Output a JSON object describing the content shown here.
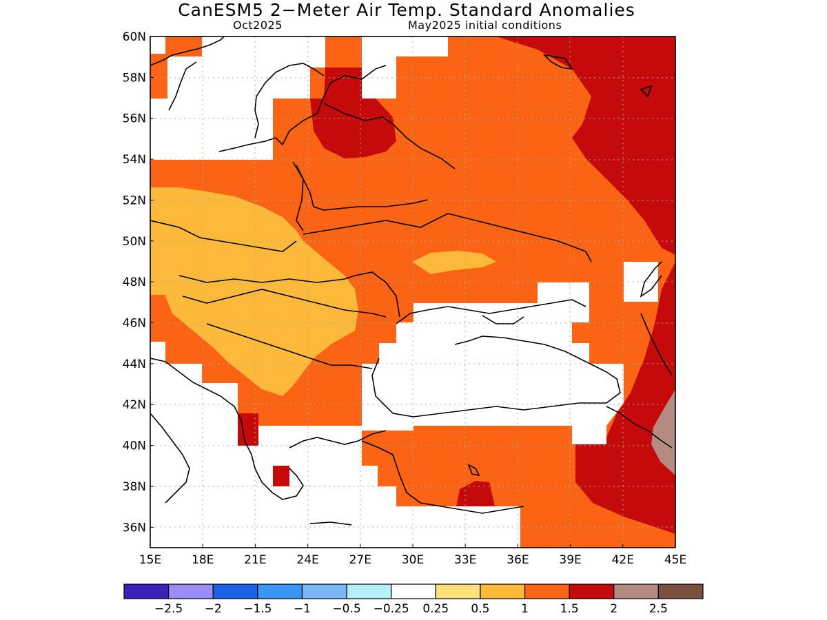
{
  "title": "CanESM5 2−Meter Air Temp. Standard Anomalies",
  "subtitle_left": "Oct2025",
  "subtitle_right": "May2025 initial conditions",
  "axes": {
    "lat_labels": [
      "60N",
      "58N",
      "56N",
      "54N",
      "52N",
      "50N",
      "48N",
      "46N",
      "44N",
      "42N",
      "40N",
      "38N",
      "36N"
    ],
    "lon_labels": [
      "15E",
      "18E",
      "21E",
      "24E",
      "27E",
      "30E",
      "33E",
      "36E",
      "39E",
      "42E",
      "45E"
    ],
    "lat_range": [
      35,
      60
    ],
    "lon_range": [
      15,
      45
    ],
    "grid": true
  },
  "colorbar": {
    "colors": [
      "#3b22b8",
      "#9c8cf5",
      "#1c62e6",
      "#3a96f5",
      "#78b8f8",
      "#b4f0fa",
      "#ffffff",
      "#fee17a",
      "#fdb93a",
      "#fa6414",
      "#c40a0a",
      "#b58a80",
      "#7a5040"
    ],
    "labels": [
      "−2.5",
      "−2",
      "−1.5",
      "−1",
      "−0.5",
      "−0.25",
      "0.25",
      "0.5",
      "1",
      "1.5",
      "2",
      "2.5"
    ]
  },
  "palette": {
    "white": "#ffffff",
    "light_yellow": "#fee17a",
    "orange_light": "#fdb93a",
    "orange": "#fa6414",
    "dark_red": "#c40a0a",
    "brown": "#b58a80"
  }
}
